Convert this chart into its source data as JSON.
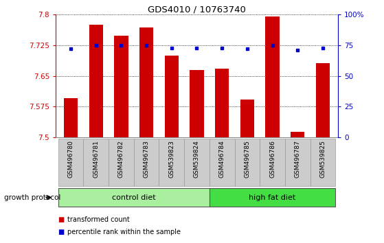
{
  "title": "GDS4010 / 10763740",
  "samples": [
    "GSM496780",
    "GSM496781",
    "GSM496782",
    "GSM496783",
    "GSM539823",
    "GSM539824",
    "GSM496784",
    "GSM496785",
    "GSM496786",
    "GSM496787",
    "GSM539825"
  ],
  "bar_values": [
    7.595,
    7.775,
    7.748,
    7.768,
    7.7,
    7.665,
    7.668,
    7.593,
    7.795,
    7.513,
    7.682
  ],
  "dot_values": [
    72,
    75,
    75,
    75,
    73,
    73,
    73,
    72,
    75,
    71,
    73
  ],
  "ylim_left": [
    7.5,
    7.8
  ],
  "ylim_right": [
    0,
    100
  ],
  "yticks_left": [
    7.5,
    7.575,
    7.65,
    7.725,
    7.8
  ],
  "yticks_left_labels": [
    "7.5",
    "7.575",
    "7.65",
    "7.725",
    "7.8"
  ],
  "yticks_right": [
    0,
    25,
    50,
    75,
    100
  ],
  "yticks_right_labels": [
    "0",
    "25",
    "50",
    "75",
    "100%"
  ],
  "bar_color": "#cc0000",
  "dot_color": "#0000cc",
  "background_color": "#ffffff",
  "grid_color": "#000000",
  "control_diet_color": "#aaeea0",
  "high_fat_diet_color": "#44dd44",
  "control_diet_label": "control diet",
  "high_fat_diet_label": "high fat diet",
  "growth_protocol_label": "growth protocol",
  "legend_bar_label": "transformed count",
  "legend_dot_label": "percentile rank within the sample",
  "control_samples_count": 6,
  "high_fat_samples_count": 5,
  "left_color": "#cc0000",
  "right_color": "#0000cc",
  "tick_label_bg": "#cccccc"
}
